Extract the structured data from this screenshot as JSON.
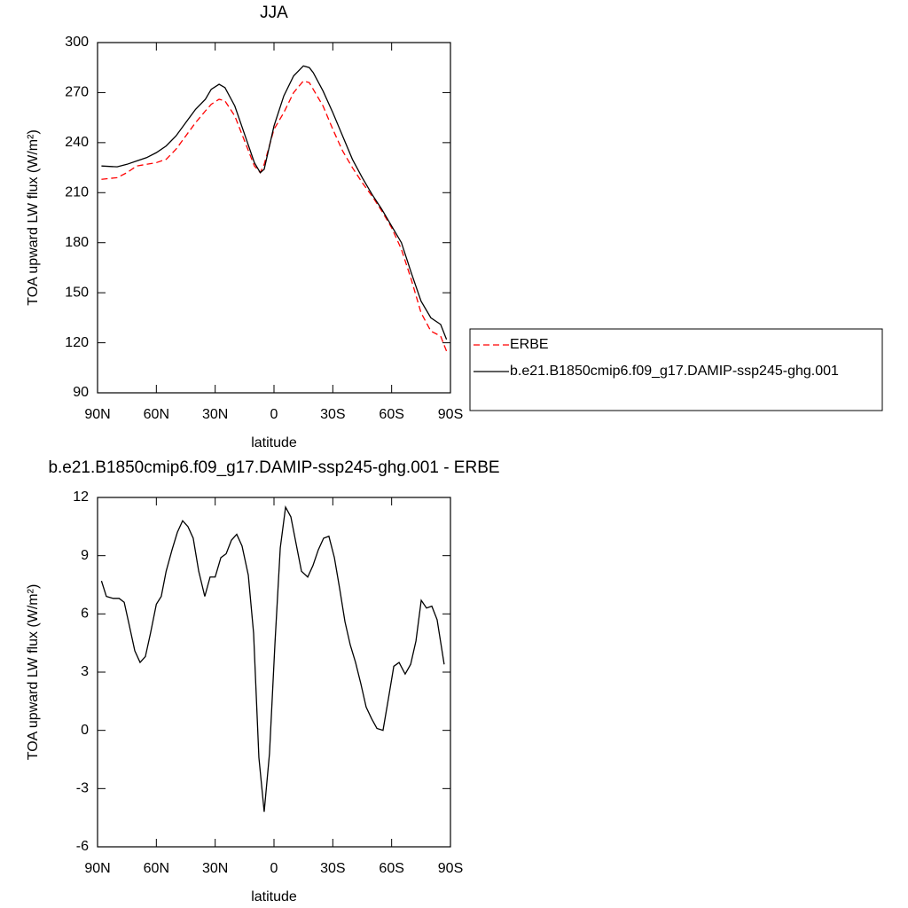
{
  "chart_data": [
    {
      "type": "line",
      "title": "JJA",
      "xlabel": "latitude",
      "ylabel": "TOA upward LW flux (W/m²)",
      "xlim": [
        90,
        -90
      ],
      "xticks": [
        {
          "value": 90,
          "label": "90N"
        },
        {
          "value": 60,
          "label": "60N"
        },
        {
          "value": 30,
          "label": "30N"
        },
        0,
        {
          "value": -30,
          "label": "30S"
        },
        {
          "value": -60,
          "label": "60S"
        },
        {
          "value": -90,
          "label": "90S"
        }
      ],
      "ylim": [
        90,
        300
      ],
      "yticks": [
        90,
        120,
        150,
        180,
        210,
        240,
        270,
        300
      ],
      "legend": "right",
      "x": [
        88,
        80,
        75,
        70,
        65,
        60,
        55,
        50,
        45,
        40,
        35,
        32,
        28,
        25,
        20,
        15,
        10,
        7,
        5,
        0,
        -5,
        -10,
        -15,
        -18,
        -20,
        -25,
        -30,
        -35,
        -40,
        -45,
        -50,
        -55,
        -60,
        -65,
        -70,
        -75,
        -80,
        -85,
        -88
      ],
      "series": [
        {
          "name": "ERBE",
          "color": "#ff0000",
          "dash": "dashed",
          "values": [
            218,
            219,
            222,
            226,
            227,
            228,
            230,
            236,
            244,
            252,
            259,
            263,
            266,
            265,
            256,
            241,
            226,
            222,
            227,
            248,
            258,
            270,
            277,
            276,
            272,
            262,
            248,
            235,
            225,
            216,
            208,
            199,
            189,
            176,
            158,
            138,
            127,
            124,
            115
          ]
        },
        {
          "name": "b.e21.B1850cmip6.f09_g17.DAMIP-ssp245-ghg.001",
          "color": "#000000",
          "dash": "solid",
          "values": [
            226,
            225.5,
            227,
            229,
            231,
            234,
            238,
            244,
            252,
            260,
            266,
            272,
            275,
            273,
            262,
            245,
            228,
            222,
            224,
            250,
            268,
            280,
            286,
            285,
            282,
            271,
            258,
            244,
            230,
            219,
            209,
            200,
            190,
            180,
            162,
            145,
            135,
            131,
            122
          ]
        }
      ]
    },
    {
      "type": "line",
      "title": "b.e21.B1850cmip6.f09_g17.DAMIP-ssp245-ghg.001 - ERBE",
      "xlabel": "latitude",
      "ylabel": "TOA upward LW flux (W/m²)",
      "xlim": [
        90,
        -90
      ],
      "xticks": [
        {
          "value": 90,
          "label": "90N"
        },
        {
          "value": 60,
          "label": "60N"
        },
        {
          "value": 30,
          "label": "30N"
        },
        0,
        {
          "value": -30,
          "label": "30S"
        },
        {
          "value": -60,
          "label": "60S"
        },
        {
          "value": -90,
          "label": "90S"
        }
      ],
      "ylim": [
        -6,
        12
      ],
      "yticks": [
        -6,
        -3,
        0,
        3,
        6,
        9,
        12
      ],
      "x": [
        88,
        85.5,
        82,
        79,
        76.4,
        74,
        71,
        68.3,
        65.6,
        63,
        60,
        57.5,
        55,
        52,
        49.3,
        46.6,
        43.9,
        41.2,
        38.4,
        35.3,
        32.6,
        30,
        27.1,
        24.4,
        21.7,
        19,
        16.3,
        13.1,
        10.4,
        7.7,
        5,
        2.3,
        -0.5,
        -3.2,
        -5.9,
        -8.6,
        -11.3,
        -14,
        -17.2,
        -19.9,
        -22.6,
        -25.3,
        -28,
        -30.8,
        -33.5,
        -36.2,
        -38.9,
        -41.6,
        -44.3,
        -47,
        -49.8,
        -52.5,
        -55.6,
        -58.3,
        -61.1,
        -63.8,
        -66.9,
        -69.7,
        -72.4,
        -75.1,
        -77.8,
        -80.5,
        -83.2,
        -86.8
      ],
      "series": [
        {
          "name": null,
          "color": "#000000",
          "dash": "solid",
          "values": [
            7.7,
            6.9,
            6.8,
            6.8,
            6.6,
            5.5,
            4.1,
            3.5,
            3.8,
            5.0,
            6.5,
            6.9,
            8.2,
            9.3,
            10.2,
            10.8,
            10.5,
            9.9,
            8.2,
            6.9,
            7.9,
            7.9,
            8.9,
            9.1,
            9.8,
            10.1,
            9.5,
            8.0,
            5.0,
            -1.4,
            -4.2,
            -1.2,
            4.5,
            9.4,
            11.5,
            11.0,
            9.6,
            8.2,
            7.9,
            8.5,
            9.3,
            9.9,
            10.0,
            8.9,
            7.3,
            5.6,
            4.4,
            3.5,
            2.4,
            1.2,
            0.6,
            0.1,
            0.0,
            1.6,
            3.3,
            3.5,
            2.9,
            3.4,
            4.6,
            6.7,
            6.3,
            6.4,
            5.7,
            3.4
          ]
        }
      ]
    }
  ]
}
